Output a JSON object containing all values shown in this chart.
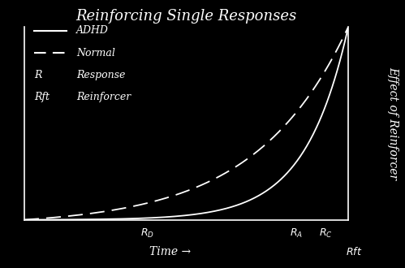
{
  "title": "Reinforcing Single Responses",
  "xlabel": "Time →",
  "ylabel": "Effect of Reinforcer",
  "background_color": "#000000",
  "text_color": "#ffffff",
  "adhd_color": "#ffffff",
  "normal_color": "#ffffff",
  "x_tick_positions": [
    0.38,
    0.84,
    0.93
  ],
  "x_tick_labels": [
    "$R_D$",
    "$R_A$",
    "$R_C$"
  ],
  "x_bottom_label": "$Rft$",
  "title_fontsize": 13,
  "axis_label_fontsize": 10,
  "legend_fontsize": 9,
  "tick_label_fontsize": 9
}
